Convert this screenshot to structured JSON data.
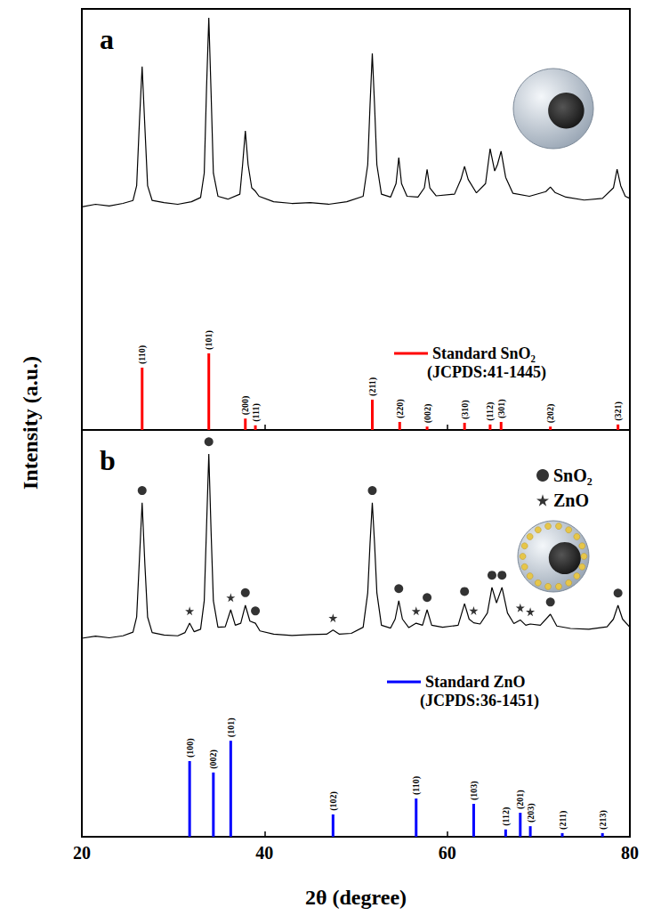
{
  "chart_data": [
    {
      "type": "line",
      "panel": "a",
      "ylabel": "Intensity (a.u.)",
      "xlim": [
        20,
        80
      ],
      "xticks": [
        20,
        40,
        60,
        80
      ],
      "ylim": [
        0,
        100
      ],
      "yticks": [],
      "tick_labels": false,
      "grid": false,
      "legend": "lower right",
      "series": [
        {
          "type": "line",
          "color": "#000000",
          "x": [
            20,
            21.5,
            23,
            24.5,
            25.6,
            26.0,
            26.3,
            26.6,
            26.9,
            27.2,
            27.7,
            29,
            30.5,
            32,
            33.0,
            33.4,
            33.65,
            33.9,
            34.15,
            34.4,
            34.9,
            36,
            37.3,
            37.6,
            37.9,
            38.2,
            38.6,
            39.0,
            39.4,
            41,
            43,
            45,
            47,
            49,
            50.8,
            51.3,
            51.55,
            51.8,
            52.05,
            52.3,
            52.8,
            53.8,
            54.4,
            54.7,
            55.0,
            55.6,
            56.8,
            57.5,
            57.8,
            58.1,
            58.8,
            60.8,
            61.5,
            61.9,
            62.3,
            63.2,
            64.2,
            64.7,
            65.2,
            65.5,
            65.9,
            66.4,
            67.2,
            69,
            70.8,
            71.3,
            71.8,
            73,
            75,
            77,
            78.2,
            78.6,
            79.0,
            79.5,
            80
          ],
          "values": [
            53.0,
            53.6,
            53.2,
            53.8,
            54.5,
            58,
            73,
            86.3,
            72,
            58,
            54.5,
            54.0,
            53.6,
            54.2,
            55.2,
            61,
            81,
            97.9,
            80,
            61,
            55.5,
            54.8,
            56,
            63,
            71.0,
            63,
            57.5,
            56.7,
            55.5,
            54.2,
            53.8,
            54.0,
            53.6,
            54.2,
            55.5,
            63,
            77,
            89.4,
            77,
            63,
            56,
            55.3,
            58.5,
            64.7,
            58.5,
            55.5,
            55.3,
            57.5,
            61.9,
            57.5,
            55.6,
            56,
            59.5,
            62.6,
            59.5,
            56.3,
            58.5,
            66.8,
            61.5,
            63,
            66.2,
            60,
            56.2,
            55.5,
            56.6,
            57.7,
            56.4,
            55.3,
            54.6,
            55,
            57.5,
            61.9,
            58,
            55.5,
            55.0
          ]
        },
        {
          "name": "Standard SnO₂",
          "type": "bar",
          "color": "#ff0000",
          "annotation": "(JCPDS:41-1445)",
          "x": [
            26.6,
            33.9,
            37.9,
            39.0,
            51.8,
            54.8,
            57.8,
            61.9,
            64.7,
            65.9,
            71.3,
            78.7
          ],
          "values": [
            14.8,
            18.2,
            2.7,
            1.1,
            7.2,
            1.9,
            0.8,
            1.7,
            1.3,
            1.9,
            0.8,
            1.3
          ],
          "labels": [
            "(110)",
            "(101)",
            "(200)",
            "(111)",
            "(211)",
            "(220)",
            "(002)",
            "(310)",
            "(112)",
            "(301)",
            "(202)",
            "(321)"
          ]
        }
      ]
    },
    {
      "type": "line",
      "panel": "b",
      "xlabel": "2θ (degree)",
      "xlim": [
        20,
        80
      ],
      "xticks": [
        20,
        40,
        60,
        80
      ],
      "ylim": [
        0,
        100
      ],
      "yticks": [],
      "tick_labels": "x",
      "grid": false,
      "legend": "upper right",
      "series": [
        {
          "type": "line",
          "color": "#000000",
          "x": [
            20,
            21.5,
            23,
            24.5,
            25.6,
            26.0,
            26.3,
            26.6,
            26.9,
            27.2,
            27.7,
            29,
            30.5,
            31.3,
            31.8,
            32.3,
            33.0,
            33.4,
            33.65,
            33.9,
            34.15,
            34.4,
            34.9,
            35.7,
            36.3,
            36.8,
            37.4,
            37.9,
            38.4,
            39.0,
            39.5,
            41,
            43,
            45,
            46.8,
            47.5,
            48.2,
            49.5,
            50.8,
            51.3,
            51.55,
            51.8,
            52.05,
            52.3,
            52.8,
            53.8,
            54.3,
            54.7,
            55.1,
            55.8,
            56.6,
            57.3,
            57.8,
            58.3,
            59.5,
            61.2,
            61.9,
            62.4,
            62.9,
            63.6,
            64.4,
            64.9,
            65.4,
            66.0,
            66.6,
            67.3,
            68.0,
            68.6,
            69.1,
            70.2,
            71.3,
            72.0,
            73.5,
            75.5,
            77.5,
            78.2,
            78.7,
            79.2,
            80
          ],
          "values": [
            48.8,
            49.3,
            48.9,
            49.4,
            50.3,
            54,
            68,
            82.1,
            67,
            54,
            50.2,
            49.6,
            49.4,
            50.2,
            52.5,
            50.4,
            51,
            58,
            76,
            94.1,
            75,
            58,
            51.5,
            51.6,
            55.8,
            52,
            52.5,
            56.9,
            53,
            52.5,
            50.6,
            49.8,
            49.5,
            49.7,
            49.8,
            50.8,
            49.8,
            50,
            51.5,
            60,
            72,
            82.1,
            72,
            60,
            52,
            51.3,
            53.5,
            58.0,
            53.5,
            51.4,
            52.5,
            52,
            55.8,
            52,
            51.5,
            52,
            57.3,
            53.5,
            52.6,
            52.3,
            55,
            61.3,
            57.5,
            61.3,
            55,
            52.4,
            53.3,
            52,
            52.3,
            52,
            54.7,
            51.8,
            51.2,
            51.0,
            51.6,
            53.5,
            56.9,
            53.5,
            51.5
          ]
        },
        {
          "name": "SnO₂",
          "type": "scatter",
          "marker": "circle",
          "color": "#000000",
          "x": [
            26.6,
            33.9,
            37.9,
            39.0,
            51.8,
            54.7,
            57.8,
            61.9,
            64.9,
            66.0,
            71.3,
            78.7
          ],
          "values": [
            85.1,
            97.1,
            60.0,
            55.5,
            85.1,
            61.0,
            58.8,
            60.3,
            64.3,
            64.3,
            57.7,
            59.9
          ]
        },
        {
          "name": "ZnO",
          "type": "scatter",
          "marker": "star",
          "color": "#000000",
          "x": [
            31.8,
            36.3,
            47.5,
            56.6,
            62.9,
            68.0,
            69.1
          ],
          "values": [
            55.5,
            58.8,
            53.8,
            55.5,
            55.6,
            56.3,
            55.3
          ]
        },
        {
          "name": "Standard ZnO",
          "type": "bar",
          "color": "#0000ff",
          "annotation": "(JCPDS:36-1451)",
          "x": [
            31.8,
            34.4,
            36.3,
            47.5,
            56.6,
            62.9,
            66.4,
            68.0,
            69.1,
            72.6,
            77.0
          ],
          "values": [
            18.6,
            15.8,
            23.6,
            5.5,
            9.4,
            8.1,
            1.8,
            5.9,
            2.6,
            0.9,
            0.9
          ],
          "labels": [
            "(100)",
            "(002)",
            "(101)",
            "(102)",
            "(110)",
            "(103)",
            "(112)",
            "(201)",
            "(203)",
            "(211)",
            "(213)"
          ]
        }
      ]
    }
  ]
}
